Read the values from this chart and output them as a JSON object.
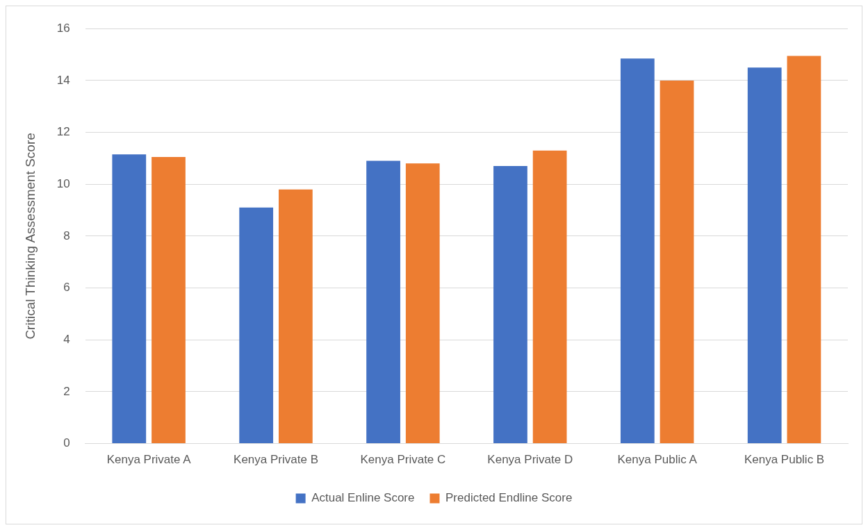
{
  "chart_data": {
    "type": "bar",
    "ylabel": "Critical Thinking Assessment Score",
    "categories": [
      "Kenya Private A",
      "Kenya Private B",
      "Kenya Private C",
      "Kenya Private D",
      "Kenya Public A",
      "Kenya Public B"
    ],
    "series": [
      {
        "name": "Actual Enline Score",
        "color": "#4472c4",
        "values": [
          11.15,
          9.1,
          10.9,
          10.7,
          14.85,
          14.5
        ]
      },
      {
        "name": "Predicted Endline Score",
        "color": "#ed7d31",
        "values": [
          11.05,
          9.8,
          10.8,
          11.3,
          14.0,
          14.95
        ]
      }
    ],
    "ylim": [
      0,
      16
    ],
    "yticks": [
      0,
      2,
      4,
      6,
      8,
      10,
      12,
      14,
      16
    ],
    "grid": "y",
    "legend": "bottom"
  }
}
